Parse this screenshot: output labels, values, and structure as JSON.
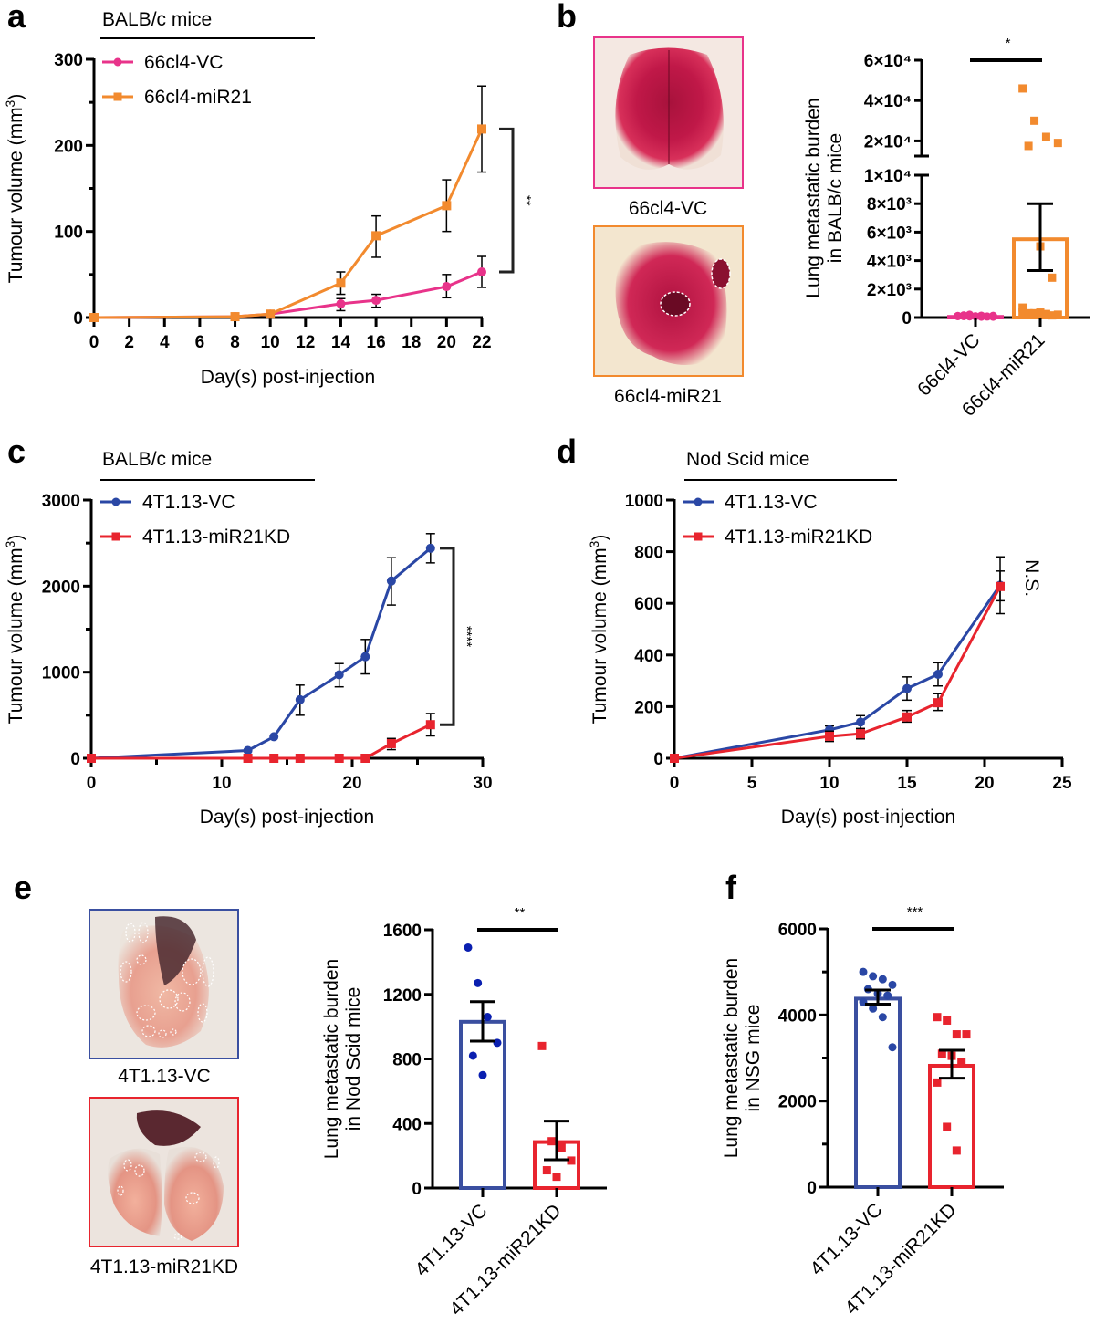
{
  "panels": {
    "a": {
      "letter": "a"
    },
    "b": {
      "letter": "b"
    },
    "c": {
      "letter": "c"
    },
    "d": {
      "letter": "d"
    },
    "e": {
      "letter": "e"
    },
    "f": {
      "letter": "f"
    }
  },
  "photos": {
    "b_top": {
      "caption": "66cl4-VC",
      "border": "#e8338a"
    },
    "b_bottom": {
      "caption": "66cl4-miR21",
      "border": "#f28a2e"
    },
    "e_top": {
      "caption": "4T1.13-VC",
      "border": "#3a4fa0"
    },
    "e_bottom": {
      "caption": "4T1.13-miR21KD",
      "border": "#e8242e"
    }
  },
  "chart_data": [
    {
      "id": "a",
      "type": "line",
      "header": "BALB/c mice",
      "xlabel": "Day(s) post-injection",
      "ylabel": "Tumour volume (mm",
      "ylabel_sup": "3",
      "ylabel_end": ")",
      "xlim": [
        0,
        22
      ],
      "ylim": [
        0,
        300
      ],
      "xticks": [
        0,
        2,
        4,
        6,
        8,
        10,
        12,
        14,
        16,
        18,
        20,
        22
      ],
      "yticks": [
        0,
        100,
        200,
        300
      ],
      "yminor": [
        50,
        150,
        250
      ],
      "significance": "**",
      "series": [
        {
          "name": "66cl4-VC",
          "color": "#e8338a",
          "marker": "circle",
          "x": [
            0,
            8,
            10,
            14,
            16,
            20,
            22
          ],
          "y": [
            0,
            1,
            4,
            16,
            20,
            36,
            53
          ],
          "err_low": [
            0,
            0,
            0,
            8,
            12,
            23,
            35
          ],
          "err_high": [
            0,
            0,
            0,
            22,
            27,
            50,
            71
          ]
        },
        {
          "name": "66cl4-miR21",
          "color": "#f28a2e",
          "marker": "square",
          "x": [
            0,
            8,
            10,
            14,
            16,
            20,
            22
          ],
          "y": [
            0,
            1,
            4,
            40,
            95,
            130,
            219
          ],
          "err_low": [
            0,
            0,
            0,
            27,
            70,
            100,
            169
          ],
          "err_high": [
            0,
            0,
            0,
            53,
            118,
            160,
            269
          ]
        }
      ]
    },
    {
      "id": "b",
      "type": "bar",
      "ylabel_line1": "Lung metastatic burden",
      "ylabel_line2": "in BALB/c mice",
      "categories": [
        "66cl4-VC",
        "66cl4-miR21"
      ],
      "colors": [
        "#e8338a",
        "#f28a2e"
      ],
      "broken_axis": true,
      "lower_ylim": [
        0,
        10000
      ],
      "upper_ylim": [
        12500,
        60000
      ],
      "lower_ticks": [
        {
          "v": 0,
          "label": "0"
        },
        {
          "v": 2000,
          "label": "2×10³"
        },
        {
          "v": 4000,
          "label": "4×10³"
        },
        {
          "v": 6000,
          "label": "6×10³"
        },
        {
          "v": 8000,
          "label": "8×10³"
        },
        {
          "v": 10000,
          "label": "1×10⁴"
        }
      ],
      "upper_ticks": [
        {
          "v": 20000,
          "label": "2×10⁴"
        },
        {
          "v": 40000,
          "label": "4×10⁴"
        },
        {
          "v": 60000,
          "label": "6×10⁴"
        }
      ],
      "significance": "*",
      "bars": [
        {
          "mean": 50,
          "sem_low": 50,
          "sem_high": 50,
          "points": [
            100,
            80,
            60,
            120,
            150,
            90,
            70,
            110,
            200,
            130,
            60,
            100
          ]
        },
        {
          "mean": 5500,
          "sem_low": 3300,
          "sem_high": 8000,
          "points": [
            46000,
            30000,
            22000,
            19000,
            17500,
            5000,
            2800,
            700,
            300,
            250,
            200,
            300,
            350,
            150,
            400
          ]
        }
      ]
    },
    {
      "id": "c",
      "type": "line",
      "header": "BALB/c mice",
      "xlabel": "Day(s) post-injection",
      "ylabel": "Tumour volume (mm",
      "ylabel_sup": "3",
      "ylabel_end": ")",
      "xlim": [
        0,
        30
      ],
      "ylim": [
        0,
        3000
      ],
      "xticks": [
        0,
        10,
        20,
        30
      ],
      "xminor": [
        5,
        15,
        25
      ],
      "yticks": [
        0,
        1000,
        2000,
        3000
      ],
      "yminor": [
        500,
        1500,
        2500
      ],
      "significance": "****",
      "series": [
        {
          "name": "4T1.13-VC",
          "color": "#2a47a5",
          "marker": "circle",
          "x": [
            0,
            12,
            14,
            16,
            19,
            21,
            23,
            26
          ],
          "y": [
            0,
            90,
            250,
            680,
            970,
            1180,
            2060,
            2440
          ],
          "err_low": [
            0,
            0,
            0,
            500,
            830,
            980,
            1780,
            2270
          ],
          "err_high": [
            0,
            0,
            0,
            850,
            1100,
            1380,
            2330,
            2610
          ]
        },
        {
          "name": "4T1.13-miR21KD",
          "color": "#e8242e",
          "marker": "square",
          "x": [
            0,
            12,
            14,
            16,
            19,
            21,
            23,
            26
          ],
          "y": [
            0,
            0,
            0,
            0,
            0,
            0,
            170,
            390
          ],
          "err_low": [
            0,
            0,
            0,
            0,
            0,
            0,
            100,
            260
          ],
          "err_high": [
            0,
            0,
            0,
            0,
            0,
            0,
            230,
            520
          ]
        }
      ]
    },
    {
      "id": "d",
      "type": "line",
      "header": "Nod Scid mice",
      "xlabel": "Day(s) post-injection",
      "ylabel": "Tumour volume (mm",
      "ylabel_sup": "3",
      "ylabel_end": ")",
      "xlim": [
        0,
        25
      ],
      "ylim": [
        0,
        1000
      ],
      "xticks": [
        0,
        5,
        10,
        15,
        20,
        25
      ],
      "yticks": [
        0,
        200,
        400,
        600,
        800,
        1000
      ],
      "significance": "N.S.",
      "series": [
        {
          "name": "4T1.13-VC",
          "color": "#2a47a5",
          "marker": "circle",
          "x": [
            0,
            10,
            12,
            15,
            17,
            21
          ],
          "y": [
            0,
            110,
            140,
            270,
            325,
            670
          ],
          "err_low": [
            0,
            90,
            115,
            225,
            280,
            560
          ],
          "err_high": [
            0,
            125,
            165,
            315,
            370,
            780
          ]
        },
        {
          "name": "4T1.13-miR21KD",
          "color": "#e8242e",
          "marker": "square",
          "x": [
            0,
            10,
            12,
            15,
            17,
            21
          ],
          "y": [
            0,
            85,
            95,
            160,
            215,
            665
          ],
          "err_low": [
            0,
            65,
            75,
            140,
            185,
            610
          ],
          "err_high": [
            0,
            105,
            115,
            185,
            250,
            725
          ]
        }
      ]
    },
    {
      "id": "e",
      "type": "bar",
      "ylabel_line1": "Lung metastatic burden",
      "ylabel_line2": "in Nod Scid mice",
      "categories": [
        "4T1.13-VC",
        "4T1.13-miR21KD"
      ],
      "colors": [
        "#3a4fa0",
        "#e8242e"
      ],
      "point_colors": [
        "#0a1fb0",
        "#e8242e"
      ],
      "markers": [
        "circle",
        "square"
      ],
      "ylim": [
        0,
        1600
      ],
      "yticks": [
        0,
        400,
        800,
        1200,
        1600
      ],
      "significance": "**",
      "bars": [
        {
          "mean": 1030,
          "sem_low": 910,
          "sem_high": 1155,
          "points": [
            1490,
            1270,
            1060,
            900,
            820,
            700
          ]
        },
        {
          "mean": 285,
          "sem_low": 175,
          "sem_high": 415,
          "points": [
            880,
            290,
            250,
            170,
            110,
            70
          ]
        }
      ]
    },
    {
      "id": "f",
      "type": "bar",
      "ylabel_line1": "Lung metastatic burden",
      "ylabel_line2": "in NSG mice",
      "categories": [
        "4T1.13-VC",
        "4T1.13-miR21KD"
      ],
      "colors": [
        "#3a4fa0",
        "#e8242e"
      ],
      "point_colors": [
        "#2a47a5",
        "#e8242e"
      ],
      "markers": [
        "circle",
        "square"
      ],
      "ylim": [
        0,
        6000
      ],
      "yticks": [
        0,
        2000,
        4000,
        6000
      ],
      "yminor": [
        1000,
        3000,
        5000
      ],
      "significance": "***",
      "bars": [
        {
          "mean": 4380,
          "sem_low": 4250,
          "sem_high": 4580,
          "points": [
            5000,
            4900,
            4830,
            4700,
            4600,
            4500,
            4450,
            4300,
            4150,
            3950,
            3250
          ]
        },
        {
          "mean": 2820,
          "sem_low": 2530,
          "sem_high": 3180,
          "points": [
            3950,
            3870,
            3550,
            3550,
            3100,
            3050,
            2900,
            2430,
            1400,
            850
          ]
        }
      ]
    }
  ]
}
